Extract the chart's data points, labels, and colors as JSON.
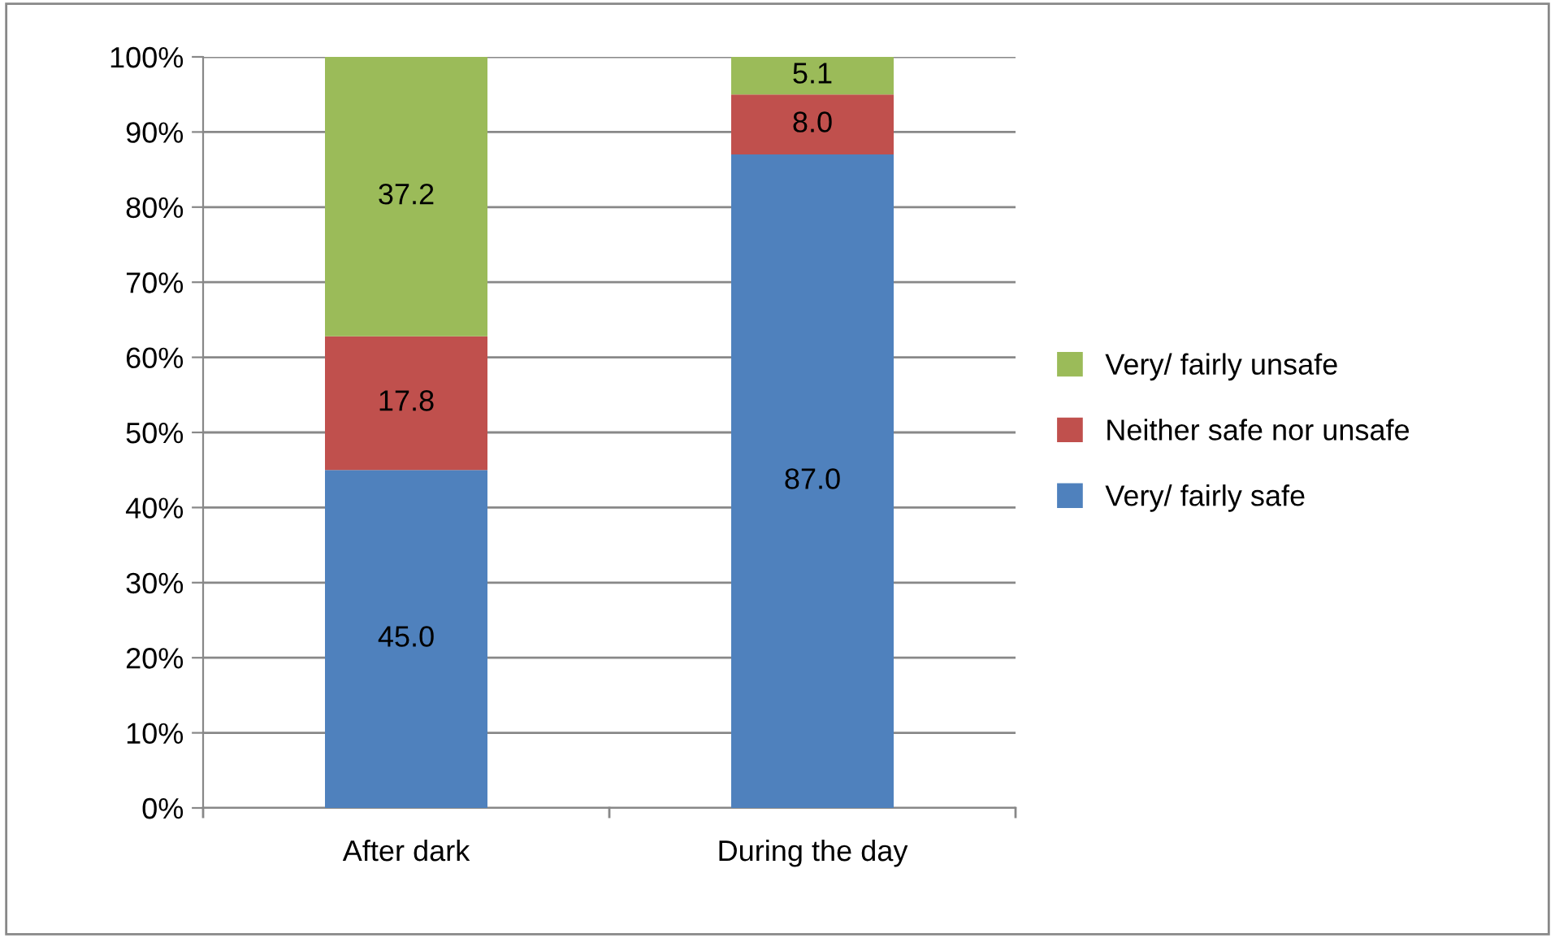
{
  "chart_data": {
    "type": "bar",
    "stacked": true,
    "categories": [
      "After dark",
      "During the day"
    ],
    "series": [
      {
        "name": "Very/ fairly safe",
        "color": "#4f81bd",
        "values": [
          45.0,
          87.0
        ],
        "value_labels": [
          "45.0",
          "87.0"
        ]
      },
      {
        "name": "Neither safe nor unsafe",
        "color": "#c0504d",
        "values": [
          17.8,
          8.0
        ],
        "value_labels": [
          "17.8",
          "8.0"
        ]
      },
      {
        "name": "Very/ fairly unsafe",
        "color": "#9bbb59",
        "values": [
          37.2,
          5.1
        ],
        "value_labels": [
          "37.2",
          "5.1"
        ]
      }
    ],
    "ylim": [
      0,
      100
    ],
    "yticks": [
      {
        "value": 0,
        "label": "0%"
      },
      {
        "value": 10,
        "label": "10%"
      },
      {
        "value": 20,
        "label": "20%"
      },
      {
        "value": 30,
        "label": "30%"
      },
      {
        "value": 40,
        "label": "40%"
      },
      {
        "value": 50,
        "label": "50%"
      },
      {
        "value": 60,
        "label": "60%"
      },
      {
        "value": 70,
        "label": "70%"
      },
      {
        "value": 80,
        "label": "80%"
      },
      {
        "value": 90,
        "label": "90%"
      },
      {
        "value": 100,
        "label": "100%"
      }
    ],
    "grid": "y",
    "legend": "right"
  }
}
